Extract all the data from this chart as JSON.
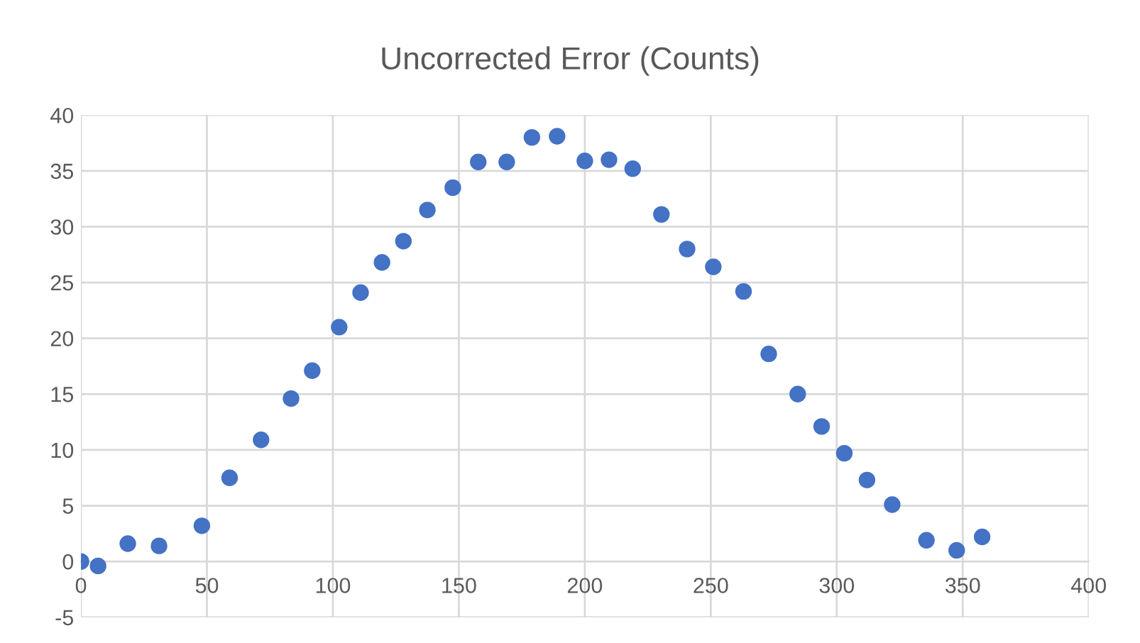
{
  "chart_data": {
    "type": "scatter",
    "title": "Uncorrected Error (Counts)",
    "x": [
      0,
      6.8,
      18.6,
      31,
      48,
      59,
      71.5,
      83.4,
      91.8,
      102.5,
      111,
      119.5,
      128,
      137.5,
      147.6,
      157.7,
      169,
      179,
      189,
      200,
      209.6,
      219,
      230.4,
      240.6,
      251,
      263,
      273,
      284.5,
      294,
      303,
      312,
      322,
      335.6,
      347.6,
      357.7
    ],
    "series": [
      {
        "color": "#4472c4",
        "values": [
          0,
          -0.4,
          1.6,
          1.4,
          3.2,
          7.5,
          10.9,
          14.6,
          17.1,
          21,
          24.1,
          26.8,
          28.7,
          31.5,
          33.5,
          35.8,
          35.8,
          38,
          38.1,
          35.9,
          36,
          35.2,
          31.1,
          28,
          26.4,
          24.2,
          18.6,
          15,
          12.1,
          9.7,
          7.3,
          5.1,
          1.9,
          1.0,
          2.2
        ]
      }
    ],
    "xlim": [
      0,
      400
    ],
    "xticks": [
      0,
      50,
      100,
      150,
      200,
      250,
      300,
      350,
      400
    ],
    "ylim": [
      -5,
      40
    ],
    "yticks": [
      -5,
      0,
      5,
      10,
      15,
      20,
      25,
      30,
      35,
      40
    ],
    "grid": true,
    "marker": "circle",
    "legend": false
  }
}
